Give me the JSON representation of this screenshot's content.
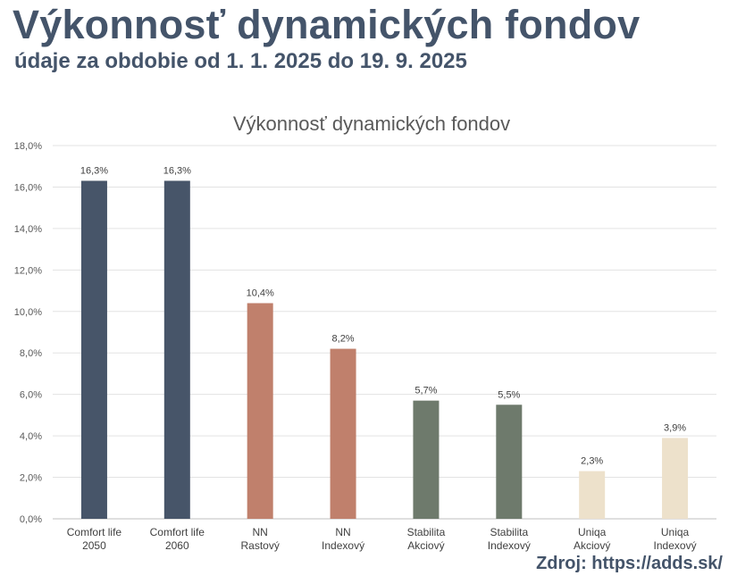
{
  "header": {
    "title": "Výkonnosť dynamických fondov",
    "subtitle": "údaje za obdobie od 1. 1. 2025 do 19. 9. 2025"
  },
  "footer": {
    "source": "Zdroj: https://adds.sk/"
  },
  "chart_data": {
    "type": "bar",
    "title": "Výkonnosť  dynamických fondov",
    "xlabel": "",
    "ylabel": "",
    "ylim": [
      0,
      18
    ],
    "y_ticks": [
      0,
      2,
      4,
      6,
      8,
      10,
      12,
      14,
      16,
      18
    ],
    "y_tick_labels": [
      "0,0%",
      "2,0%",
      "4,0%",
      "6,0%",
      "8,0%",
      "10,0%",
      "12,0%",
      "14,0%",
      "16,0%",
      "18,0%"
    ],
    "grid": true,
    "legend": "none",
    "categories": [
      [
        "Comfort life",
        "2050"
      ],
      [
        "Comfort life",
        "2060"
      ],
      [
        "NN",
        "Rastový"
      ],
      [
        "NN",
        "Indexový"
      ],
      [
        "Stabilita",
        "Akciový"
      ],
      [
        "Stabilita",
        "Indexový"
      ],
      [
        "Uniqa",
        "Akciový"
      ],
      [
        "Uniqa",
        "Indexový"
      ]
    ],
    "values": [
      16.3,
      16.3,
      10.4,
      8.2,
      5.7,
      5.5,
      2.3,
      3.9
    ],
    "data_labels": [
      "16,3%",
      "16,3%",
      "10,4%",
      "8,2%",
      "5,7%",
      "5,5%",
      "2,3%",
      "3,9%"
    ],
    "colors": [
      "#475569",
      "#475569",
      "#c0806c",
      "#c0806c",
      "#6e7a6c",
      "#6e7a6c",
      "#ede1cb",
      "#ede1cb"
    ]
  }
}
